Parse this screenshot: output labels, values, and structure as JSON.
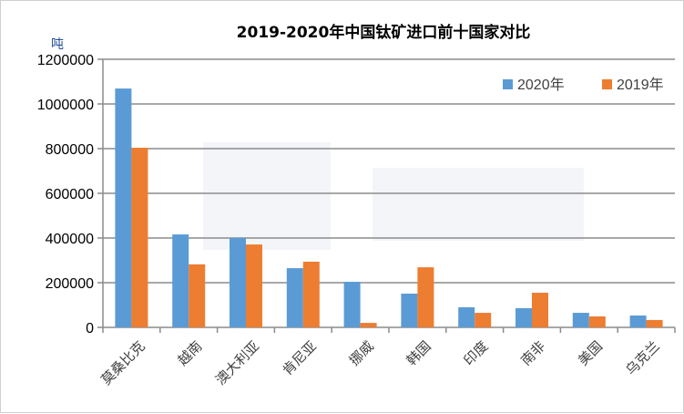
{
  "chart_data": {
    "type": "bar",
    "title": "2019-2020年中国钛矿进口前十国家对比",
    "ylabel": "吨",
    "xlabel": "",
    "ylim": [
      0,
      1200000
    ],
    "yticks": [
      "0",
      "200000",
      "400000",
      "600000",
      "800000",
      "1000000",
      "1200000"
    ],
    "grid": true,
    "legend_position": "top-right",
    "categories": [
      "莫桑比克",
      "越南",
      "澳大利亚",
      "肯尼亚",
      "挪威",
      "韩国",
      "印度",
      "南非",
      "美国",
      "乌克兰"
    ],
    "series": [
      {
        "name": "2020年",
        "color": "#5b9bd5",
        "values": [
          1069000,
          416000,
          400000,
          265000,
          204000,
          151000,
          90000,
          86000,
          65000,
          53000
        ]
      },
      {
        "name": "2019年",
        "color": "#ed7d31",
        "values": [
          804000,
          282000,
          371000,
          294000,
          20000,
          269000,
          65000,
          155000,
          49000,
          33000
        ]
      }
    ]
  }
}
